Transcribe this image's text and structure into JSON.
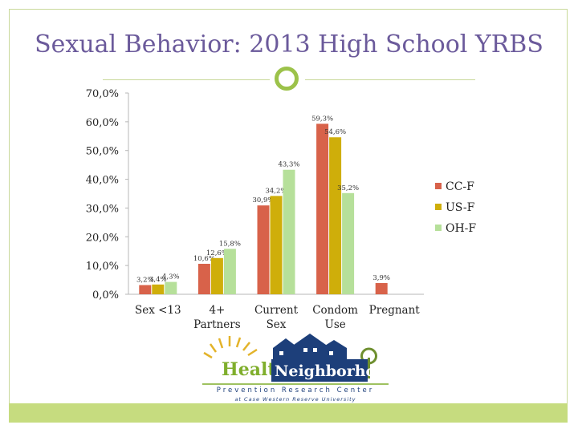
{
  "slide": {
    "title": "Sexual Behavior: 2013 High School YRBS"
  },
  "logo": {
    "word1": "Healthy",
    "word2": "Neighborhoods",
    "line1": "Prevention Research Center",
    "line2": "at Case Western Reserve University"
  },
  "colors": {
    "title": "#6b5a9b",
    "frame": "#c9d99a",
    "band": "#c6dc7f",
    "ornament": "#9cc24a",
    "axis": "#b7b7b7",
    "cc": "#d8624a",
    "us": "#cfae0a",
    "oh": "#b6e09a"
  },
  "chart_data": {
    "type": "bar",
    "title": "",
    "xlabel": "",
    "ylabel": "",
    "ylim": [
      0,
      70
    ],
    "yticks": [
      "0,0%",
      "10,0%",
      "20,0%",
      "30,0%",
      "40,0%",
      "50,0%",
      "60,0%",
      "70,0%"
    ],
    "categories": [
      [
        "Sex <13"
      ],
      [
        "4+",
        "Partners"
      ],
      [
        "Current",
        "Sex"
      ],
      [
        "Condom",
        "Use"
      ],
      [
        "Pregnant"
      ]
    ],
    "series": [
      {
        "name": "CC-F",
        "color": "#d8624a",
        "values": [
          3.2,
          10.6,
          30.9,
          59.3,
          3.9
        ],
        "labels": [
          "3,2%",
          "10,6%",
          "30,9%",
          "59,3%",
          "3,9%"
        ]
      },
      {
        "name": "US-F",
        "color": "#cfae0a",
        "values": [
          3.4,
          12.6,
          34.2,
          54.6,
          null
        ],
        "labels": [
          "3,4%",
          "12,6%",
          "34,2%",
          "54,6%",
          null
        ]
      },
      {
        "name": "OH-F",
        "color": "#b6e09a",
        "values": [
          4.3,
          15.8,
          43.3,
          35.2,
          null
        ],
        "labels": [
          "4,3%",
          "15,8%",
          "43,3%",
          "35,2%",
          null
        ]
      }
    ],
    "grid": false,
    "legend": "right"
  }
}
